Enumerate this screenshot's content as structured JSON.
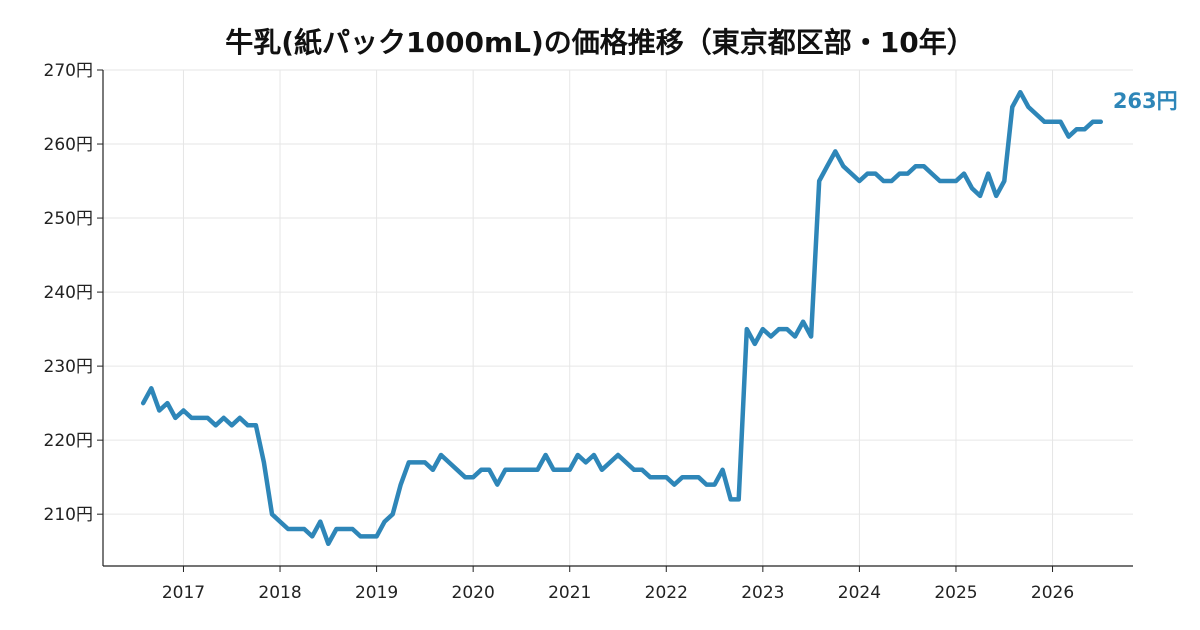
{
  "chart_data": {
    "type": "line",
    "title": "牛乳(紙パック1000mL)の価格推移（東京都区部・10年）",
    "xlabel": "",
    "ylabel": "",
    "x_ticks": [
      "2017",
      "2018",
      "2019",
      "2020",
      "2021",
      "2022",
      "2023",
      "2024",
      "2025",
      "2026"
    ],
    "y_ticks": [
      "210円",
      "220円",
      "230円",
      "240円",
      "250円",
      "260円",
      "270円"
    ],
    "y_tick_values": [
      210,
      220,
      230,
      240,
      250,
      260,
      270
    ],
    "ylim": [
      203,
      270
    ],
    "xlim": [
      "2016-03",
      "2026-11"
    ],
    "grid": true,
    "legend": "none",
    "end_label": "263円",
    "series": [
      {
        "color": "#2e86b8",
        "points": [
          [
            "2016-08",
            225
          ],
          [
            "2016-09",
            227
          ],
          [
            "2016-10",
            224
          ],
          [
            "2016-11",
            225
          ],
          [
            "2016-12",
            223
          ],
          [
            "2017-01",
            224
          ],
          [
            "2017-02",
            223
          ],
          [
            "2017-03",
            223
          ],
          [
            "2017-04",
            223
          ],
          [
            "2017-05",
            222
          ],
          [
            "2017-06",
            223
          ],
          [
            "2017-07",
            222
          ],
          [
            "2017-08",
            223
          ],
          [
            "2017-09",
            222
          ],
          [
            "2017-10",
            222
          ],
          [
            "2017-11",
            217
          ],
          [
            "2017-12",
            210
          ],
          [
            "2018-01",
            209
          ],
          [
            "2018-02",
            208
          ],
          [
            "2018-03",
            208
          ],
          [
            "2018-04",
            208
          ],
          [
            "2018-05",
            207
          ],
          [
            "2018-06",
            209
          ],
          [
            "2018-07",
            206
          ],
          [
            "2018-08",
            208
          ],
          [
            "2018-09",
            208
          ],
          [
            "2018-10",
            208
          ],
          [
            "2018-11",
            207
          ],
          [
            "2018-12",
            207
          ],
          [
            "2019-01",
            207
          ],
          [
            "2019-02",
            209
          ],
          [
            "2019-03",
            210
          ],
          [
            "2019-04",
            214
          ],
          [
            "2019-05",
            217
          ],
          [
            "2019-06",
            217
          ],
          [
            "2019-07",
            217
          ],
          [
            "2019-08",
            216
          ],
          [
            "2019-09",
            218
          ],
          [
            "2019-10",
            217
          ],
          [
            "2019-11",
            216
          ],
          [
            "2019-12",
            215
          ],
          [
            "2020-01",
            215
          ],
          [
            "2020-02",
            216
          ],
          [
            "2020-03",
            216
          ],
          [
            "2020-04",
            214
          ],
          [
            "2020-05",
            216
          ],
          [
            "2020-06",
            216
          ],
          [
            "2020-07",
            216
          ],
          [
            "2020-08",
            216
          ],
          [
            "2020-09",
            216
          ],
          [
            "2020-10",
            218
          ],
          [
            "2020-11",
            216
          ],
          [
            "2020-12",
            216
          ],
          [
            "2021-01",
            216
          ],
          [
            "2021-02",
            218
          ],
          [
            "2021-03",
            217
          ],
          [
            "2021-04",
            218
          ],
          [
            "2021-05",
            216
          ],
          [
            "2021-06",
            217
          ],
          [
            "2021-07",
            218
          ],
          [
            "2021-08",
            217
          ],
          [
            "2021-09",
            216
          ],
          [
            "2021-10",
            216
          ],
          [
            "2021-11",
            215
          ],
          [
            "2021-12",
            215
          ],
          [
            "2022-01",
            215
          ],
          [
            "2022-02",
            214
          ],
          [
            "2022-03",
            215
          ],
          [
            "2022-04",
            215
          ],
          [
            "2022-05",
            215
          ],
          [
            "2022-06",
            214
          ],
          [
            "2022-07",
            214
          ],
          [
            "2022-08",
            216
          ],
          [
            "2022-09",
            212
          ],
          [
            "2022-10",
            212
          ],
          [
            "2022-11",
            235
          ],
          [
            "2022-12",
            233
          ],
          [
            "2023-01",
            235
          ],
          [
            "2023-02",
            234
          ],
          [
            "2023-03",
            235
          ],
          [
            "2023-04",
            235
          ],
          [
            "2023-05",
            234
          ],
          [
            "2023-06",
            236
          ],
          [
            "2023-07",
            234
          ],
          [
            "2023-08",
            255
          ],
          [
            "2023-09",
            257
          ],
          [
            "2023-10",
            259
          ],
          [
            "2023-11",
            257
          ],
          [
            "2023-12",
            256
          ],
          [
            "2024-01",
            255
          ],
          [
            "2024-02",
            256
          ],
          [
            "2024-03",
            256
          ],
          [
            "2024-04",
            255
          ],
          [
            "2024-05",
            255
          ],
          [
            "2024-06",
            256
          ],
          [
            "2024-07",
            256
          ],
          [
            "2024-08",
            257
          ],
          [
            "2024-09",
            257
          ],
          [
            "2024-10",
            256
          ],
          [
            "2024-11",
            255
          ],
          [
            "2024-12",
            255
          ],
          [
            "2025-01",
            255
          ],
          [
            "2025-02",
            256
          ],
          [
            "2025-03",
            254
          ],
          [
            "2025-04",
            253
          ],
          [
            "2025-05",
            256
          ],
          [
            "2025-06",
            253
          ],
          [
            "2025-07",
            255
          ],
          [
            "2025-08",
            265
          ],
          [
            "2025-09",
            267
          ],
          [
            "2025-10",
            265
          ],
          [
            "2025-11",
            264
          ],
          [
            "2025-12",
            263
          ],
          [
            "2026-01",
            263
          ],
          [
            "2026-02",
            263
          ],
          [
            "2026-03",
            261
          ],
          [
            "2026-04",
            262
          ],
          [
            "2026-05",
            262
          ],
          [
            "2026-06",
            263
          ],
          [
            "2026-07",
            263
          ]
        ]
      }
    ]
  }
}
